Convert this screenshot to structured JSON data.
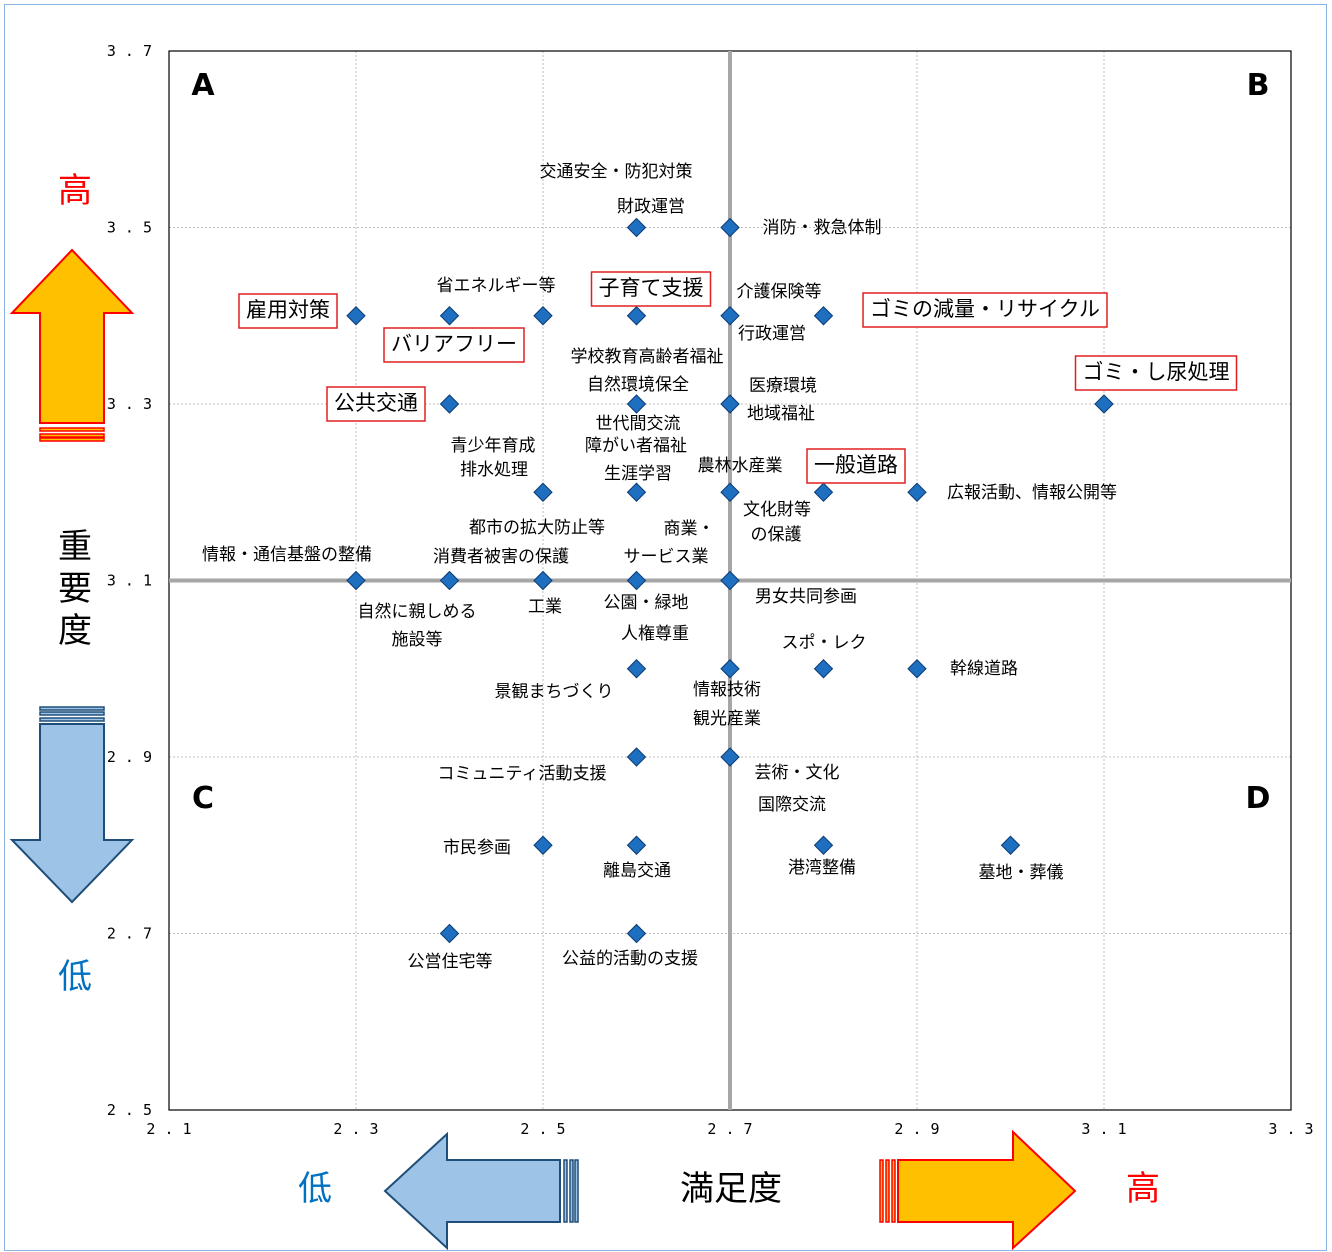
{
  "chart_data": {
    "type": "scatter",
    "xlabel": "満足度",
    "ylabel": "重要度",
    "xlim": [
      2.1,
      3.3
    ],
    "ylim": [
      2.5,
      3.7
    ],
    "x_ticks": [
      "2.1",
      "2.3",
      "2.5",
      "2.7",
      "2.9",
      "3.1",
      "3.3"
    ],
    "y_ticks": [
      "2.5",
      "2.7",
      "2.9",
      "3.1",
      "3.3",
      "3.5",
      "3.7"
    ],
    "reference_lines": {
      "x": 2.7,
      "y": 3.1
    },
    "grid": true,
    "quadrants": {
      "top_left": "A",
      "top_right": "B",
      "bottom_left": "C",
      "bottom_right": "D"
    },
    "y_high_label": "高",
    "y_low_label": "低",
    "x_high_label": "高",
    "x_low_label": "低",
    "points": [
      {
        "x": 2.6,
        "y": 3.5
      },
      {
        "x": 2.7,
        "y": 3.5
      },
      {
        "x": 2.3,
        "y": 3.4
      },
      {
        "x": 2.4,
        "y": 3.4
      },
      {
        "x": 2.5,
        "y": 3.4
      },
      {
        "x": 2.6,
        "y": 3.4
      },
      {
        "x": 2.7,
        "y": 3.4
      },
      {
        "x": 2.8,
        "y": 3.4
      },
      {
        "x": 2.4,
        "y": 3.3
      },
      {
        "x": 2.6,
        "y": 3.3
      },
      {
        "x": 2.7,
        "y": 3.3
      },
      {
        "x": 3.1,
        "y": 3.3
      },
      {
        "x": 2.5,
        "y": 3.2
      },
      {
        "x": 2.6,
        "y": 3.2
      },
      {
        "x": 2.7,
        "y": 3.2
      },
      {
        "x": 2.8,
        "y": 3.2
      },
      {
        "x": 2.9,
        "y": 3.2
      },
      {
        "x": 2.3,
        "y": 3.1
      },
      {
        "x": 2.4,
        "y": 3.1
      },
      {
        "x": 2.5,
        "y": 3.1
      },
      {
        "x": 2.6,
        "y": 3.1
      },
      {
        "x": 2.7,
        "y": 3.1
      },
      {
        "x": 2.6,
        "y": 3.0
      },
      {
        "x": 2.7,
        "y": 3.0
      },
      {
        "x": 2.8,
        "y": 3.0
      },
      {
        "x": 2.9,
        "y": 3.0
      },
      {
        "x": 2.6,
        "y": 2.9
      },
      {
        "x": 2.7,
        "y": 2.9
      },
      {
        "x": 2.5,
        "y": 2.8
      },
      {
        "x": 2.6,
        "y": 2.8
      },
      {
        "x": 2.8,
        "y": 2.8
      },
      {
        "x": 3.0,
        "y": 2.8
      },
      {
        "x": 2.4,
        "y": 2.7
      },
      {
        "x": 2.6,
        "y": 2.7
      }
    ],
    "annotations": [
      {
        "text": "交通安全・防犯対策",
        "boxed": false
      },
      {
        "text": "財政運営",
        "boxed": false
      },
      {
        "text": "消防・救急体制",
        "boxed": false
      },
      {
        "text": "省エネルギー等",
        "boxed": false
      },
      {
        "text": "子育て支援",
        "boxed": true
      },
      {
        "text": "介護保険等",
        "boxed": false
      },
      {
        "text": "雇用対策",
        "boxed": true
      },
      {
        "text": "ゴミの減量・リサイクル",
        "boxed": true
      },
      {
        "text": "行政運営",
        "boxed": false
      },
      {
        "text": "バリアフリー",
        "boxed": true
      },
      {
        "text": "学校教育高齢者福祉",
        "boxed": false
      },
      {
        "text": "自然環境保全",
        "boxed": false
      },
      {
        "text": "医療環境",
        "boxed": false
      },
      {
        "text": "ゴミ・し尿処理",
        "boxed": true
      },
      {
        "text": "公共交通",
        "boxed": true
      },
      {
        "text": "地域福祉",
        "boxed": false
      },
      {
        "text": "世代間交流",
        "boxed": false
      },
      {
        "text": "青少年育成",
        "boxed": false
      },
      {
        "text": "障がい者福祉",
        "boxed": false
      },
      {
        "text": "農林水産業",
        "boxed": false
      },
      {
        "text": "一般道路",
        "boxed": true
      },
      {
        "text": "排水処理",
        "boxed": false
      },
      {
        "text": "生涯学習",
        "boxed": false
      },
      {
        "text": "広報活動、情報公開等",
        "boxed": false
      },
      {
        "text": "文化財等",
        "boxed": false
      },
      {
        "text": "の保護",
        "boxed": false
      },
      {
        "text": "都市の拡大防止等",
        "boxed": false
      },
      {
        "text": "商業・",
        "boxed": false
      },
      {
        "text": "情報・通信基盤の整備",
        "boxed": false
      },
      {
        "text": "消費者被害の保護",
        "boxed": false
      },
      {
        "text": "サービス業",
        "boxed": false
      },
      {
        "text": "男女共同参画",
        "boxed": false
      },
      {
        "text": "自然に親しめる",
        "boxed": false
      },
      {
        "text": "工業",
        "boxed": false
      },
      {
        "text": "公園・緑地",
        "boxed": false
      },
      {
        "text": "施設等",
        "boxed": false
      },
      {
        "text": "人権尊重",
        "boxed": false
      },
      {
        "text": "スポ・レク",
        "boxed": false
      },
      {
        "text": "幹線道路",
        "boxed": false
      },
      {
        "text": "景観まちづくり",
        "boxed": false
      },
      {
        "text": "情報技術",
        "boxed": false
      },
      {
        "text": "観光産業",
        "boxed": false
      },
      {
        "text": "コミュニティ活動支援",
        "boxed": false
      },
      {
        "text": "芸術・文化",
        "boxed": false
      },
      {
        "text": "国際交流",
        "boxed": false
      },
      {
        "text": "市民参画",
        "boxed": false
      },
      {
        "text": "離島交通",
        "boxed": false
      },
      {
        "text": "港湾整備",
        "boxed": false
      },
      {
        "text": "墓地・葬儀",
        "boxed": false
      },
      {
        "text": "公営住宅等",
        "boxed": false
      },
      {
        "text": "公益的活動の支援",
        "boxed": false
      }
    ]
  },
  "colors": {
    "marker": "#1f6fc0",
    "marker_stroke": "#0b3b73",
    "box_border": "#e02020",
    "ref_line": "#a6a6a6",
    "grid": "#bfbfbf",
    "up_arrow_fill": "#ffc000",
    "up_arrow_stroke": "#ff0000",
    "down_arrow_fill": "#9dc3e6",
    "down_arrow_stroke": "#1f4e79",
    "high_text": "#ff0000",
    "low_text": "#0070c0"
  }
}
